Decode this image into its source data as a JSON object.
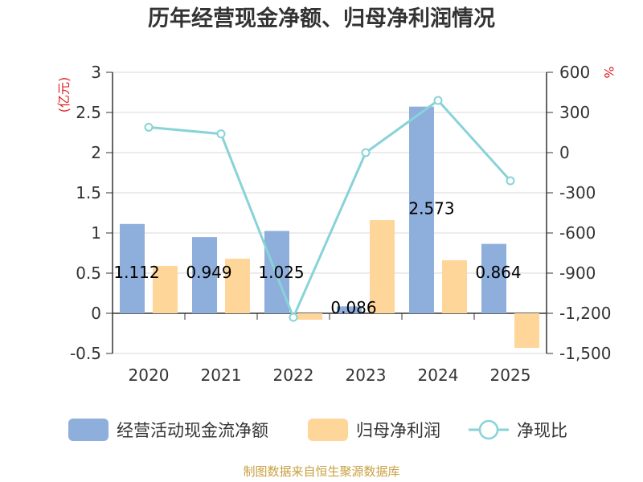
{
  "chart_data": {
    "type": "bar",
    "title": "历年经营现金净额、归母净利润情况",
    "categories": [
      "2020",
      "2021",
      "2022",
      "2023",
      "2024",
      "2025"
    ],
    "y_left": {
      "unit": "(亿元)",
      "min": -0.5,
      "max": 3,
      "ticks": [
        "-0.5",
        "0",
        "0.5",
        "1",
        "1.5",
        "2",
        "2.5",
        "3"
      ],
      "tick_values": [
        -0.5,
        0,
        0.5,
        1,
        1.5,
        2,
        2.5,
        3
      ]
    },
    "y_right": {
      "unit": "%",
      "min": -1500,
      "max": 600,
      "ticks": [
        "-1,500",
        "-1,200",
        "-900",
        "-600",
        "-300",
        "0",
        "300",
        "600"
      ],
      "tick_values": [
        -1500,
        -1200,
        -900,
        -600,
        -300,
        0,
        300,
        600
      ]
    },
    "series": [
      {
        "name": "经营活动现金流净额",
        "kind": "bar",
        "axis": "left",
        "color": "#8eaedc",
        "values": [
          1.112,
          0.949,
          1.025,
          0.086,
          2.573,
          0.864
        ],
        "labels": [
          "1.112",
          "0.949",
          "1.025",
          "0.086",
          "2.573",
          "0.864"
        ]
      },
      {
        "name": "归母净利润",
        "kind": "bar",
        "axis": "left",
        "color": "#ffd699",
        "values": [
          0.59,
          0.68,
          -0.08,
          1.16,
          0.66,
          -0.43
        ]
      },
      {
        "name": "净现比",
        "kind": "line",
        "axis": "right",
        "color": "#88d3d8",
        "values": [
          190,
          140,
          -1230,
          0,
          390,
          -210
        ]
      }
    ],
    "grid": true,
    "legend": "bottom"
  },
  "footer": {
    "source": "制图数据来自恒生聚源数据库"
  }
}
